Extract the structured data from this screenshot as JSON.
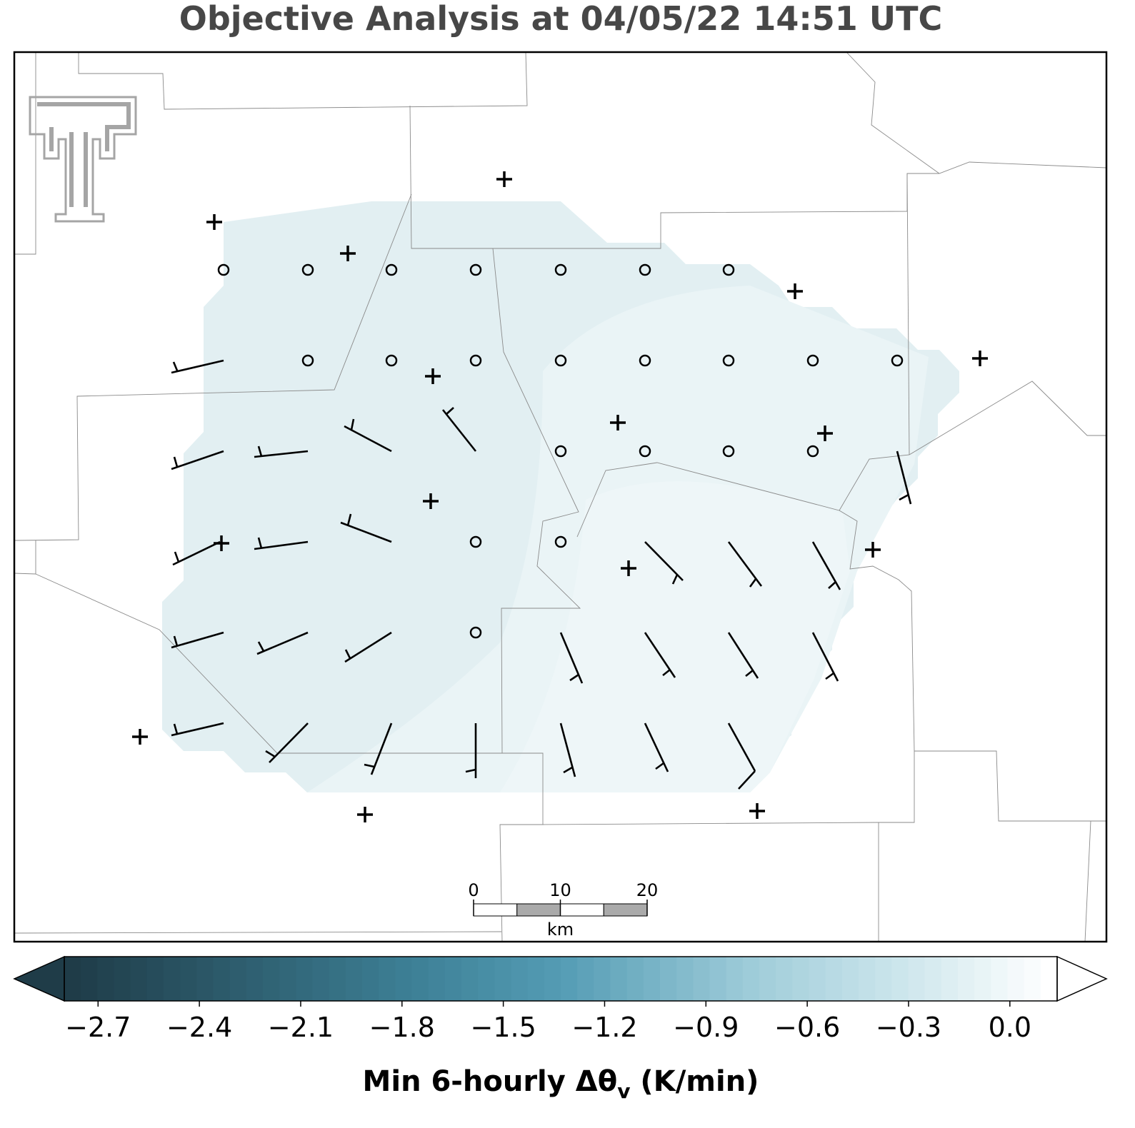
{
  "title": "Objective Analysis at 04/05/22 14:51 UTC",
  "scale_bar": {
    "ticks": [
      0,
      10,
      20
    ],
    "range": [
      0,
      20
    ],
    "unit": "km"
  },
  "colorbar": {
    "range": [
      -2.8,
      0.14
    ],
    "ticks": [
      {
        "value": -2.7,
        "label": "−2.7"
      },
      {
        "value": -2.4,
        "label": "−2.4"
      },
      {
        "value": -2.1,
        "label": "−2.1"
      },
      {
        "value": -1.8,
        "label": "−1.8"
      },
      {
        "value": -1.5,
        "label": "−1.5"
      },
      {
        "value": -1.2,
        "label": "−1.2"
      },
      {
        "value": -0.9,
        "label": "−0.9"
      },
      {
        "value": -0.6,
        "label": "−0.6"
      },
      {
        "value": -0.3,
        "label": "−0.3"
      },
      {
        "value": 0,
        "label": "0.0"
      }
    ],
    "label": {
      "main": "Min 6-hourly Δθ",
      "subscript": "v",
      "unit": " (K/min)"
    }
  }
}
